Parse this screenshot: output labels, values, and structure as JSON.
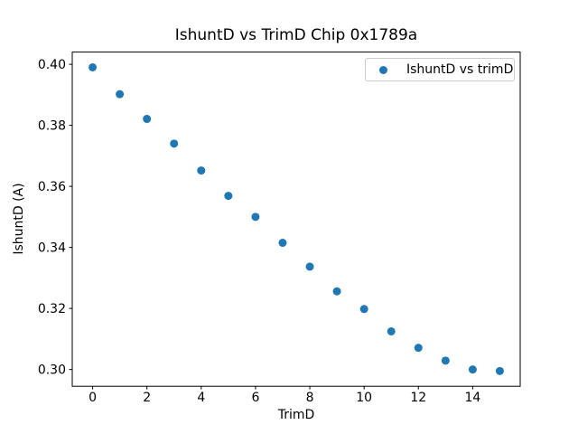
{
  "title": "IshuntD vs TrimD Chip 0x1789a",
  "colors": {
    "marker": "#1f77b4",
    "axis": "#000000",
    "background": "#ffffff",
    "legend_border": "#cccccc"
  },
  "legend": {
    "label": "IshuntD vs trimD"
  },
  "chart_data": {
    "type": "scatter",
    "title": "IshuntD vs TrimD Chip 0x1789a",
    "xlabel": "TrimD",
    "ylabel": "IshuntD (A)",
    "legend_entries": [
      "IshuntD vs trimD"
    ],
    "legend_position": "upper right",
    "marker_color": "#1f77b4",
    "grid": false,
    "x": [
      0,
      1,
      2,
      3,
      4,
      5,
      6,
      7,
      8,
      9,
      10,
      11,
      12,
      13,
      14,
      15
    ],
    "y": [
      0.399,
      0.3902,
      0.3821,
      0.374,
      0.3652,
      0.3569,
      0.35,
      0.3415,
      0.3337,
      0.3256,
      0.3198,
      0.3125,
      0.3071,
      0.3029,
      0.3,
      0.2995
    ],
    "xlim": [
      -0.75,
      15.75
    ],
    "ylim": [
      0.2945,
      0.404
    ],
    "xticks": [
      0,
      2,
      4,
      6,
      8,
      10,
      12,
      14
    ],
    "yticks": [
      0.3,
      0.32,
      0.34,
      0.36,
      0.38,
      0.4
    ]
  }
}
